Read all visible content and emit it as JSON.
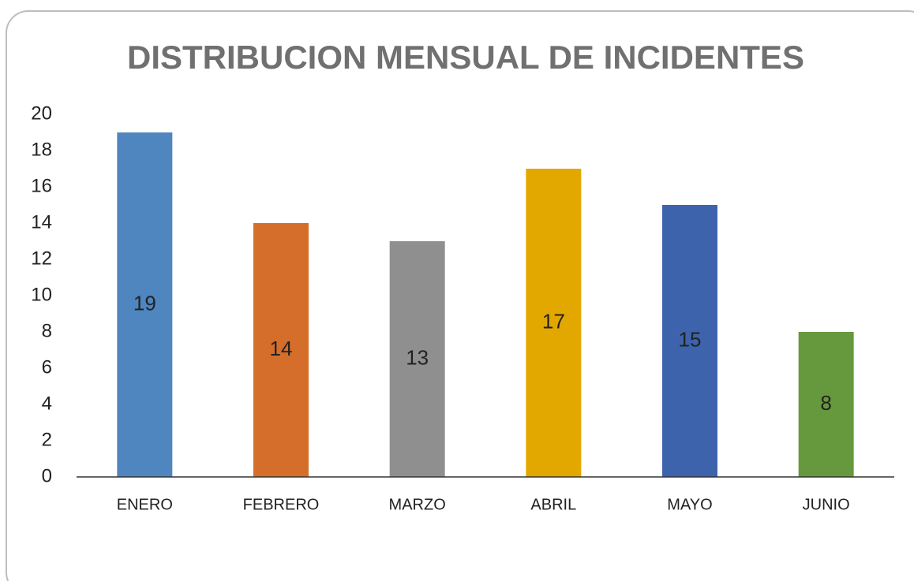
{
  "chart_data": {
    "type": "bar",
    "title": "DISTRIBUCION MENSUAL DE INCIDENTES",
    "categories": [
      "ENERO",
      "FEBRERO",
      "MARZO",
      "ABRIL",
      "MAYO",
      "JUNIO"
    ],
    "values": [
      19,
      14,
      13,
      17,
      15,
      8
    ],
    "colors": [
      "#4f86c0",
      "#d46e2a",
      "#8f8f8f",
      "#e3a800",
      "#3d63ad",
      "#66993d"
    ],
    "ylim": [
      0,
      20
    ],
    "yticks": [
      0,
      2,
      4,
      6,
      8,
      10,
      12,
      14,
      16,
      18,
      20
    ],
    "grid": false
  }
}
